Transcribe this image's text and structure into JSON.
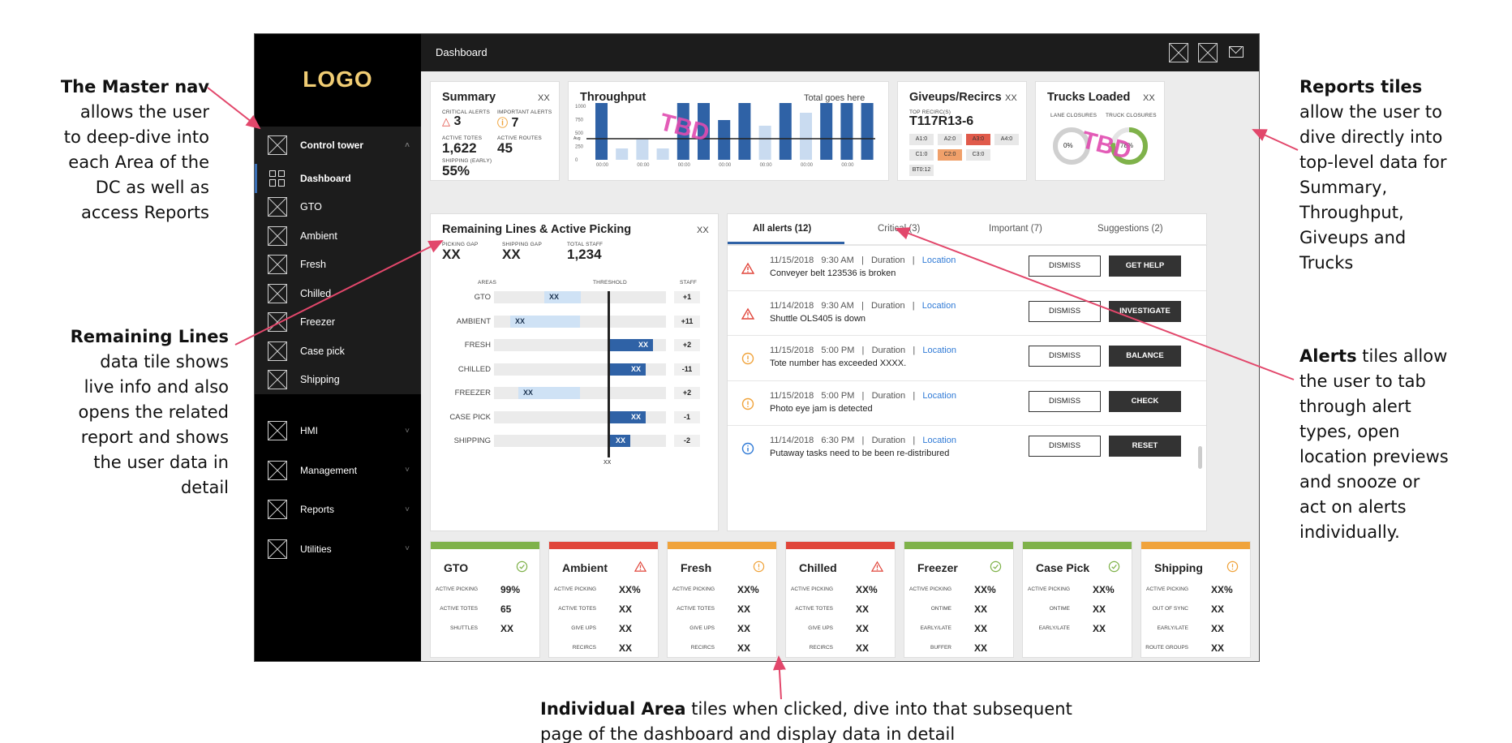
{
  "annotations": {
    "master_nav": {
      "title": "The Master nav",
      "lines": [
        "allows the user",
        "to deep-dive into",
        "each Area of the",
        "DC as well as",
        "access Reports"
      ]
    },
    "remaining_lines": {
      "title": "Remaining Lines",
      "lines": [
        "data tile shows",
        "live info and also",
        "opens the related",
        "report and shows",
        "the user data in",
        "detail"
      ]
    },
    "reports_tiles": {
      "title": "Reports tiles",
      "lines": [
        "allow the user to",
        "dive directly into",
        "top-level data for",
        "Summary,",
        "Throughput,",
        "Giveups and",
        "Trucks"
      ]
    },
    "alerts": {
      "title": "Alerts",
      "first_line_rest": "tiles allow",
      "lines": [
        "the user to tab",
        "through alert",
        "types, open",
        "location previews",
        "and snooze or",
        "act on alerts",
        "individually."
      ]
    },
    "area_tiles": {
      "title": "Individual Area",
      "first_line_rest": "tiles when clicked, dive into that subsequent",
      "second_line": "page of the dashboard and display data in detail"
    },
    "arrow_color": "#e2476b"
  },
  "sidebar": {
    "logo": "LOGO",
    "logo_color": "#f1cd74",
    "control_tower": "Control tower",
    "items": [
      {
        "label": "Dashboard",
        "icon": "dashboard-grid-icon"
      },
      {
        "label": "GTO",
        "icon": "placeholder-icon"
      },
      {
        "label": "Ambient",
        "icon": "placeholder-icon"
      },
      {
        "label": "Fresh",
        "icon": "placeholder-icon"
      },
      {
        "label": "Chilled",
        "icon": "placeholder-icon"
      },
      {
        "label": "Freezer",
        "icon": "placeholder-icon"
      },
      {
        "label": "Case pick",
        "icon": "placeholder-icon"
      },
      {
        "label": "Shipping",
        "icon": "placeholder-icon"
      }
    ],
    "lower": [
      {
        "label": "HMI"
      },
      {
        "label": "Management"
      },
      {
        "label": "Reports"
      },
      {
        "label": "Utilities"
      }
    ]
  },
  "topbar": {
    "title": "Dashboard"
  },
  "summary": {
    "title": "Summary",
    "corner": "XX",
    "critical_label": "CRITICAL ALERTS",
    "critical_value": "3",
    "important_label": "IMPORTANT ALERTS",
    "important_value": "7",
    "totes_label": "ACTIVE TOTES",
    "totes_value": "1,622",
    "routes_label": "ACTIVE ROUTES",
    "routes_value": "45",
    "shipping_label": "SHIPPING (EARLY)",
    "shipping_value": "55%"
  },
  "throughput": {
    "title": "Throughput",
    "subtitle": "Total goes here",
    "tbd": "TBD",
    "avg_label": "Avg"
  },
  "giveups": {
    "title": "Giveups/Recircs",
    "corner": "XX",
    "top_label": "TOP RECIRC(S)",
    "top_value": "T117R13-6",
    "chips": [
      "A1:0",
      "A2:0",
      "A3:0",
      "A4:0",
      "C1:0",
      "C2:0",
      "C3:0",
      "BT0:12"
    ]
  },
  "trucks": {
    "title": "Trucks Loaded",
    "corner": "XX",
    "lane_label": "LANE CLOSURES",
    "truck_label": "TRUCK CLOSURES",
    "lane_value": "0%",
    "truck_value": "78%",
    "truck_fraction": 0.78,
    "tbd": "TBD"
  },
  "remaining": {
    "title": "Remaining Lines & Active Picking",
    "corner": "XX",
    "picking_gap_label": "PICKING GAP",
    "picking_gap_value": "XX",
    "shipping_gap_label": "SHIPPING GAP",
    "shipping_gap_value": "XX",
    "total_staff_label": "TOTAL STAFF",
    "total_staff_value": "1,234",
    "col_areas": "AREAS",
    "col_threshold": "THRESHOLD",
    "col_staff": "STAFF",
    "threshold_label": "XX",
    "rows": [
      {
        "area": "GTO",
        "bar": "XX",
        "staff": "+1"
      },
      {
        "area": "AMBIENT",
        "bar": "XX",
        "staff": "+11"
      },
      {
        "area": "FRESH",
        "bar": "XX",
        "staff": "+2"
      },
      {
        "area": "CHILLED",
        "bar": "XX",
        "staff": "-11"
      },
      {
        "area": "FREEZER",
        "bar": "XX",
        "staff": "+2"
      },
      {
        "area": "CASE PICK",
        "bar": "XX",
        "staff": "-1"
      },
      {
        "area": "SHIPPING",
        "bar": "XX",
        "staff": "-2"
      }
    ]
  },
  "alerts": {
    "tabs": [
      "All alerts (12)",
      "Critical (3)",
      "Important (7)",
      "Suggestions (2)"
    ],
    "dismiss": "DISMISS",
    "duration": "Duration",
    "location": "Location",
    "items": [
      {
        "date": "11/15/2018",
        "time": "9:30 AM",
        "message": "Conveyer belt 123536 is broken",
        "action": "GET HELP",
        "icon": "warning-triangle-icon"
      },
      {
        "date": "11/14/2018",
        "time": "9:30 AM",
        "message": "Shuttle OLS405 is down",
        "action": "INVESTIGATE",
        "icon": "warning-triangle-icon"
      },
      {
        "date": "11/15/2018",
        "time": "5:00 PM",
        "message": "Tote number has exceeded XXXX.",
        "action": "BALANCE",
        "icon": "important-circle-icon"
      },
      {
        "date": "11/15/2018",
        "time": "5:00 PM",
        "message": "Photo eye jam is detected",
        "action": "CHECK",
        "icon": "important-circle-icon"
      },
      {
        "date": "11/14/2018",
        "time": "6:30 PM",
        "message": "Putaway tasks need to be been re-distribured",
        "action": "RESET",
        "icon": "info-circle-icon"
      }
    ]
  },
  "areas": [
    {
      "name": "GTO",
      "status": "ok",
      "metrics": [
        [
          "ACTIVE PICKING",
          "99%"
        ],
        [
          "ACTIVE TOTES",
          "65"
        ],
        [
          "SHUTTLES",
          "XX"
        ]
      ]
    },
    {
      "name": "Ambient",
      "status": "critical",
      "metrics": [
        [
          "ACTIVE PICKING",
          "XX%"
        ],
        [
          "ACTIVE TOTES",
          "XX"
        ],
        [
          "GIVE UPS",
          "XX"
        ],
        [
          "RECIRCS",
          "XX"
        ]
      ]
    },
    {
      "name": "Fresh",
      "status": "warning",
      "metrics": [
        [
          "ACTIVE PICKING",
          "XX%"
        ],
        [
          "ACTIVE TOTES",
          "XX"
        ],
        [
          "GIVE UPS",
          "XX"
        ],
        [
          "RECIRCS",
          "XX"
        ]
      ]
    },
    {
      "name": "Chilled",
      "status": "critical",
      "metrics": [
        [
          "ACTIVE PICKING",
          "XX%"
        ],
        [
          "ACTIVE TOTES",
          "XX"
        ],
        [
          "GIVE UPS",
          "XX"
        ],
        [
          "RECIRCS",
          "XX"
        ]
      ]
    },
    {
      "name": "Freezer",
      "status": "ok",
      "metrics": [
        [
          "ACTIVE PICKING",
          "XX%"
        ],
        [
          "ONTIME",
          "XX"
        ],
        [
          "EARLY/LATE",
          "XX"
        ],
        [
          "BUFFER",
          "XX"
        ]
      ]
    },
    {
      "name": "Case Pick",
      "status": "ok",
      "metrics": [
        [
          "ACTIVE PICKING",
          "XX%"
        ],
        [
          "ONTIME",
          "XX"
        ],
        [
          "EARLY/LATE",
          "XX"
        ]
      ]
    },
    {
      "name": "Shipping",
      "status": "warning",
      "metrics": [
        [
          "ACTIVE PICKING",
          "XX%"
        ],
        [
          "OUT OF SYNC",
          "XX"
        ],
        [
          "EARLY/LATE",
          "XX"
        ],
        [
          "ROUTE GROUPS",
          "XX"
        ]
      ]
    }
  ],
  "colors": {
    "ok": "#7fb24a",
    "critical": "#e0453a",
    "warning": "#f0a33b",
    "accent": "#2f62a6",
    "link": "#2f7ad6"
  }
}
